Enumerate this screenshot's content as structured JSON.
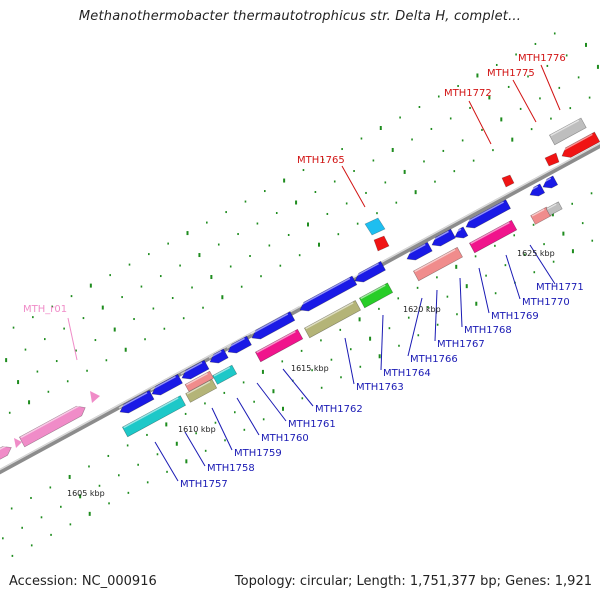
{
  "title": "Methanothermobacter thermautotrophicus str. Delta H, complet...",
  "accession": "Accession: NC_000916",
  "summary": "Topology: circular; Length: 1,751,377 bp; Genes: 1,921",
  "colors": {
    "blue": "#1a1ae6",
    "pink": "#f08cc8",
    "cyan": "#1ec8c8",
    "magenta": "#f0148c",
    "olive": "#b4b478",
    "green": "#28cd28",
    "salmon": "#f08c8c",
    "gray": "#bebebe",
    "red": "#f01414",
    "sky": "#1ebef0",
    "labelBlue": "#1a1ab4",
    "labelRed": "#d21414",
    "labelPink": "#f08cc8",
    "tick": "#1e8c1e",
    "axis": "#8c8c8c"
  },
  "scale": {
    "ticks": [
      "1605 kbp",
      "1610 kbp",
      "1615 kbp",
      "1620 kbp",
      "1625 kbp"
    ]
  },
  "genes": [
    {
      "id": "MTH_r01",
      "row": "upper",
      "color": "labelPink"
    },
    {
      "id": "MTH1757",
      "row": "lower",
      "color": "labelBlue"
    },
    {
      "id": "MTH1758",
      "row": "lower",
      "color": "labelBlue"
    },
    {
      "id": "MTH1759",
      "row": "lower",
      "color": "labelBlue"
    },
    {
      "id": "MTH1760",
      "row": "lower",
      "color": "labelBlue"
    },
    {
      "id": "MTH1761",
      "row": "lower",
      "color": "labelBlue"
    },
    {
      "id": "MTH1762",
      "row": "lower",
      "color": "labelBlue"
    },
    {
      "id": "MTH1763",
      "row": "lower",
      "color": "labelBlue"
    },
    {
      "id": "MTH1764",
      "row": "lower",
      "color": "labelBlue"
    },
    {
      "id": "MTH1765",
      "row": "upper",
      "color": "labelRed"
    },
    {
      "id": "MTH1766",
      "row": "lower",
      "color": "labelBlue"
    },
    {
      "id": "MTH1767",
      "row": "lower",
      "color": "labelBlue"
    },
    {
      "id": "MTH1768",
      "row": "lower",
      "color": "labelBlue"
    },
    {
      "id": "MTH1769",
      "row": "lower",
      "color": "labelBlue"
    },
    {
      "id": "MTH1770",
      "row": "lower",
      "color": "labelBlue"
    },
    {
      "id": "MTH1771",
      "row": "lower",
      "color": "labelBlue"
    },
    {
      "id": "MTH1772",
      "row": "upper",
      "color": "labelRed"
    },
    {
      "id": "MTH1775",
      "row": "upper",
      "color": "labelRed"
    },
    {
      "id": "MTH1776",
      "row": "upper",
      "color": "labelRed"
    }
  ]
}
